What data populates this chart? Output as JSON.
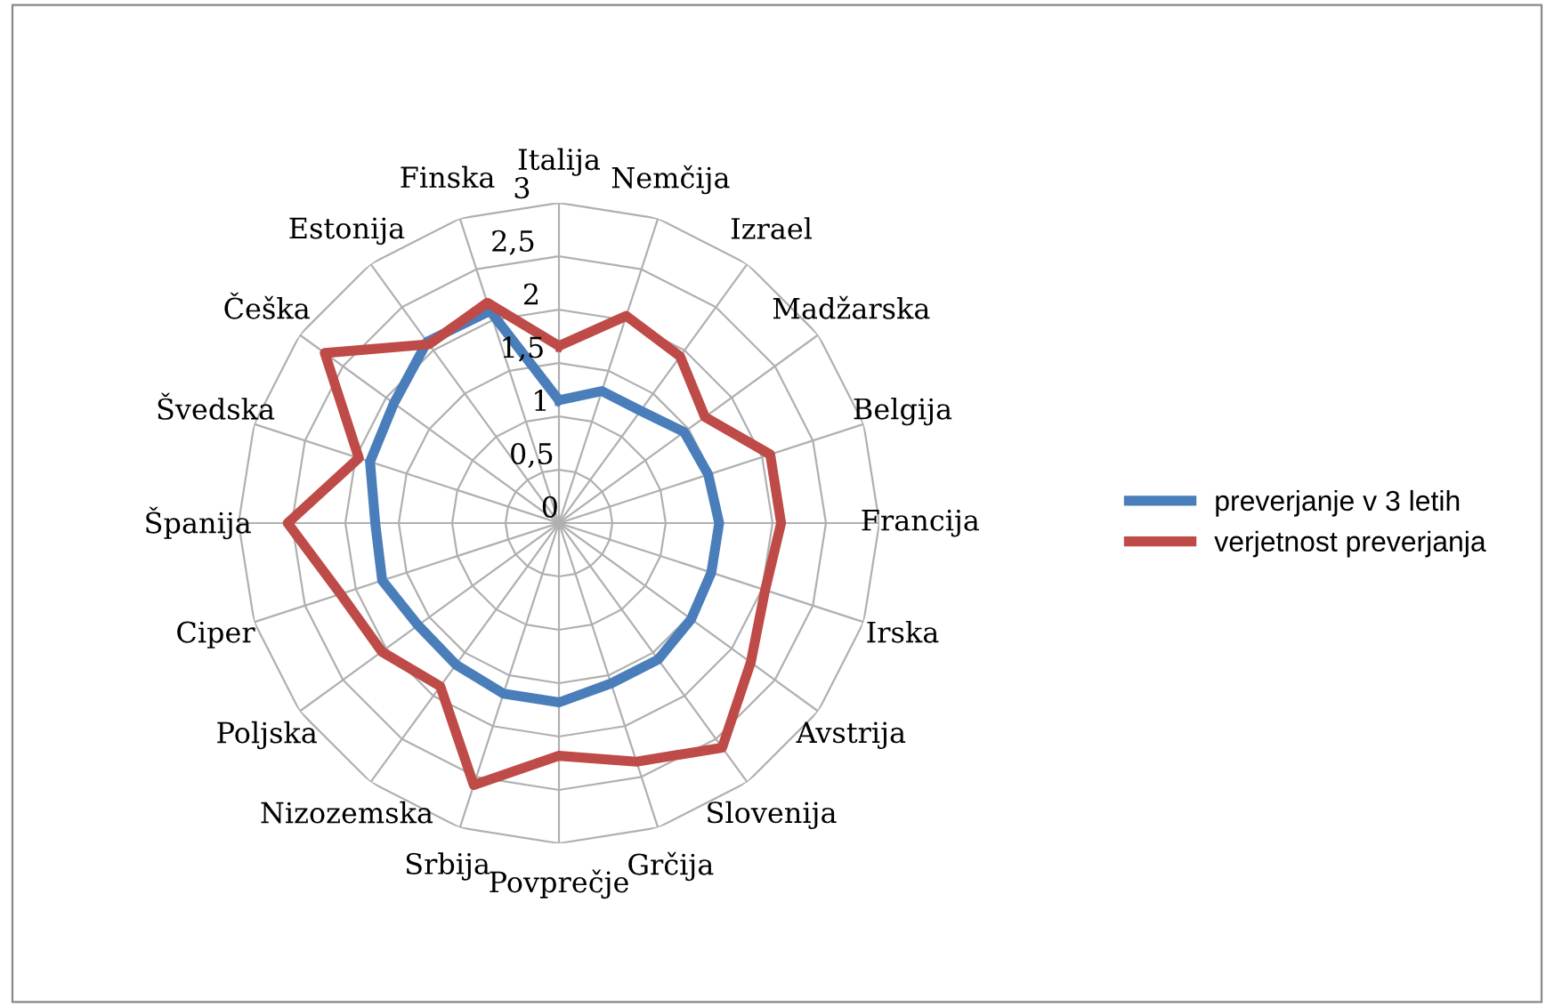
{
  "chart_data": {
    "type": "radar",
    "categories": [
      "Italija",
      "Nemčija",
      "Izrael",
      "Madžarska",
      "Belgija",
      "Francija",
      "Irska",
      "Avstrija",
      "Slovenija",
      "Grčija",
      "Povprečje",
      "Srbija",
      "Nizozemska",
      "Poljska",
      "Ciper",
      "Španija",
      "Švedska",
      "Češka",
      "Estonija",
      "Finska"
    ],
    "series": [
      {
        "name": "preverjanje v 3 letih",
        "color": "#4a7ebb",
        "values": [
          1.15,
          1.3,
          1.3,
          1.45,
          1.47,
          1.5,
          1.5,
          1.53,
          1.58,
          1.58,
          1.68,
          1.68,
          1.64,
          1.63,
          1.74,
          1.72,
          1.86,
          1.91,
          2.1,
          2.09
        ]
      },
      {
        "name": "verjetnost preverjanja",
        "color": "#be4b48",
        "values": [
          1.66,
          2.04,
          1.93,
          1.69,
          2.08,
          2.08,
          2.03,
          2.22,
          2.6,
          2.35,
          2.18,
          2.58,
          1.89,
          2.05,
          2.15,
          2.54,
          1.97,
          2.71,
          2.07,
          2.17
        ]
      }
    ],
    "ylim": [
      0,
      3
    ],
    "yticks": [
      0,
      {
        "value": 0.5,
        "label": "0,5"
      },
      1,
      {
        "value": 1.5,
        "label": "1,5"
      },
      2,
      {
        "value": 2.5,
        "label": "2,5"
      },
      3
    ],
    "grid": true,
    "legend": "right",
    "marker": "none",
    "line_style": "solid"
  }
}
